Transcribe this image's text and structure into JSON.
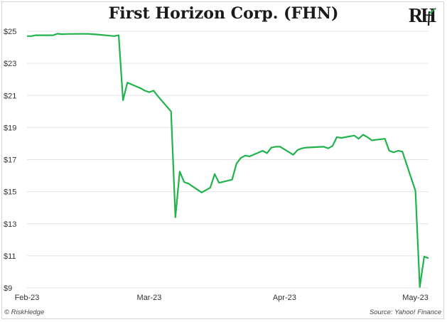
{
  "chart_data": {
    "type": "line",
    "title": "First Horizon Corp. (FHN)",
    "xlabel": "",
    "ylabel": "",
    "ylim": [
      9,
      25
    ],
    "y_ticks": [
      "$25",
      "$23",
      "$21",
      "$19",
      "$17",
      "$15",
      "$13",
      "$11",
      "$9"
    ],
    "y_tick_values": [
      25,
      23,
      21,
      19,
      17,
      15,
      13,
      11,
      9
    ],
    "x_ticks": [
      "Feb-23",
      "Mar-23",
      "Apr-23",
      "May-23"
    ],
    "x_tick_dates": [
      "2023-02-01",
      "2023-03-01",
      "2023-04-01",
      "2023-05-01"
    ],
    "grid": "horizontal",
    "line_color": "#22b24c",
    "series": [
      {
        "x": [
          "2023-02-01",
          "2023-02-02",
          "2023-02-03",
          "2023-02-06",
          "2023-02-07",
          "2023-02-08",
          "2023-02-09",
          "2023-02-10",
          "2023-02-13",
          "2023-02-14",
          "2023-02-15",
          "2023-02-16",
          "2023-02-17",
          "2023-02-21",
          "2023-02-22",
          "2023-02-23",
          "2023-02-24",
          "2023-02-27",
          "2023-02-28",
          "2023-03-01",
          "2023-03-02",
          "2023-03-03",
          "2023-03-06",
          "2023-03-07",
          "2023-03-08",
          "2023-03-09",
          "2023-03-10",
          "2023-03-13",
          "2023-03-14",
          "2023-03-15",
          "2023-03-16",
          "2023-03-17",
          "2023-03-20",
          "2023-03-21",
          "2023-03-22",
          "2023-03-23",
          "2023-03-24",
          "2023-03-27",
          "2023-03-28",
          "2023-03-29",
          "2023-03-30",
          "2023-03-31",
          "2023-04-03",
          "2023-04-04",
          "2023-04-05",
          "2023-04-06",
          "2023-04-10",
          "2023-04-11",
          "2023-04-12",
          "2023-04-13",
          "2023-04-14",
          "2023-04-17",
          "2023-04-18",
          "2023-04-19",
          "2023-04-20",
          "2023-04-21",
          "2023-04-24",
          "2023-04-25",
          "2023-04-26",
          "2023-04-27",
          "2023-04-28",
          "2023-05-01",
          "2023-05-02",
          "2023-05-03",
          "2023-05-04"
        ],
        "values": [
          24.7,
          24.7,
          24.75,
          24.75,
          24.75,
          24.85,
          24.82,
          24.83,
          24.84,
          24.84,
          24.84,
          24.82,
          24.8,
          24.7,
          24.75,
          20.7,
          21.8,
          21.45,
          21.3,
          21.2,
          21.3,
          20.95,
          20.0,
          13.4,
          16.25,
          15.6,
          15.5,
          14.95,
          15.1,
          15.25,
          16.1,
          15.55,
          15.75,
          16.75,
          17.1,
          17.25,
          17.2,
          17.55,
          17.4,
          17.75,
          17.8,
          17.8,
          17.3,
          17.6,
          17.7,
          17.75,
          17.8,
          17.7,
          17.85,
          18.4,
          18.35,
          18.5,
          18.3,
          18.55,
          18.4,
          18.2,
          18.3,
          17.55,
          17.45,
          17.55,
          17.5,
          15.05,
          9.05,
          10.95,
          10.85
        ]
      }
    ]
  },
  "branding": {
    "logo_text": "RH",
    "left_credit": "© RiskHedge",
    "right_credit": "Source: Yahoo! Finance"
  }
}
